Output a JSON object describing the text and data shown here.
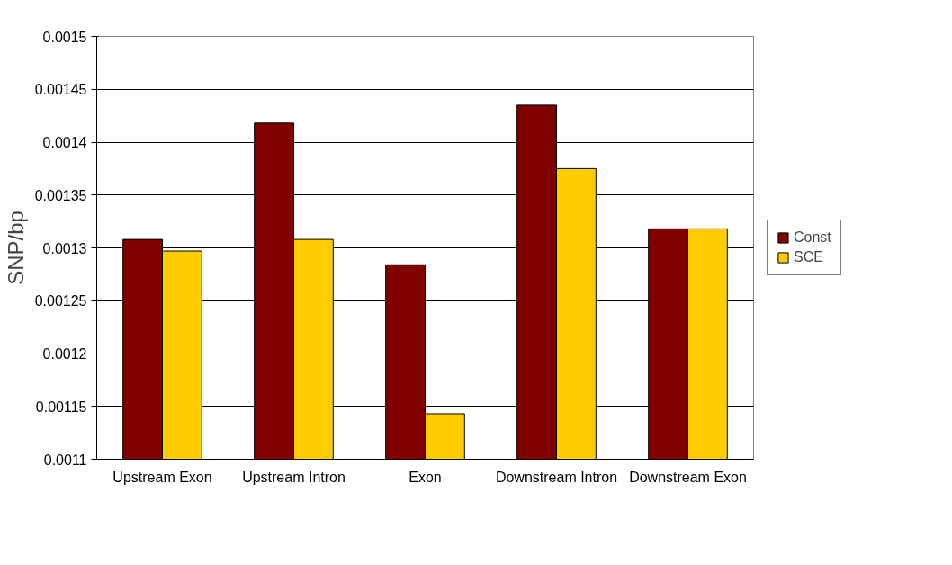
{
  "chart_data": {
    "type": "bar",
    "ylabel": "SNP/bp",
    "categories": [
      "Upstream Exon",
      "Upstream Intron",
      "Exon",
      "Downstream Intron",
      "Downstream Exon"
    ],
    "series": [
      {
        "name": "Const",
        "color": "#800000",
        "values": [
          0.001308,
          0.001418,
          0.001284,
          0.001435,
          0.001318
        ]
      },
      {
        "name": "SCE",
        "color": "#ffcc00",
        "values": [
          0.001297,
          0.001308,
          0.001143,
          0.001375,
          0.001318
        ]
      }
    ],
    "ylim": [
      0.0011,
      0.0015
    ],
    "yticks": [
      0.0011,
      0.00115,
      0.0012,
      0.00125,
      0.0013,
      0.00135,
      0.0014,
      0.00145,
      0.0015
    ],
    "grid": "y",
    "legend": "right"
  }
}
